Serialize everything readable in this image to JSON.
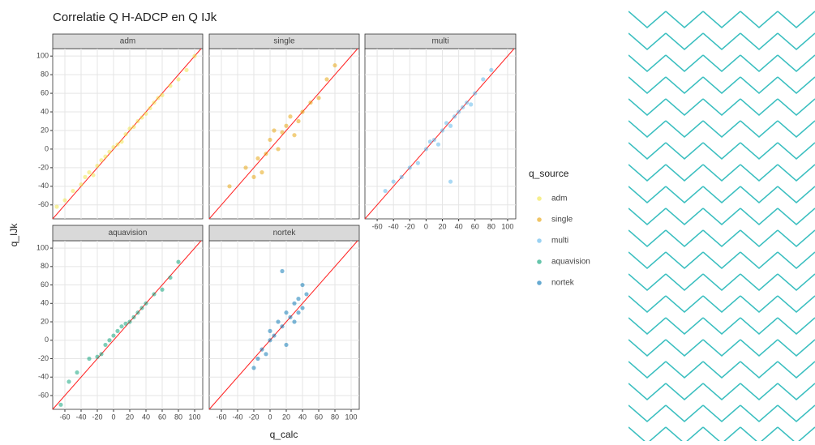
{
  "figure": {
    "title": "Correlatie Q H-ADCP en Q IJk",
    "xlabel": "q_calc",
    "ylabel": "q_IJk",
    "legend_title": "q_source"
  },
  "chart_data": [
    {
      "type": "scatter",
      "title": "adm",
      "color": "#f0e442",
      "x": [
        -70,
        -60,
        -50,
        -40,
        -35,
        -30,
        -25,
        -20,
        -15,
        -10,
        -5,
        0,
        5,
        10,
        15,
        20,
        25,
        30,
        35,
        40,
        45,
        50,
        55,
        60,
        70,
        80,
        90,
        100
      ],
      "y": [
        -62,
        -55,
        -45,
        -38,
        -30,
        -25,
        -28,
        -18,
        -12,
        -8,
        -3,
        2,
        5,
        8,
        16,
        22,
        24,
        30,
        34,
        38,
        44,
        50,
        55,
        58,
        68,
        75,
        85,
        100
      ],
      "xlim": [
        -75,
        110
      ],
      "ylim": [
        -75,
        108
      ],
      "xticks": [
        -60,
        -40,
        -20,
        0,
        20,
        40,
        60,
        80,
        100
      ],
      "yticks": [
        -60,
        -40,
        -20,
        0,
        20,
        40,
        60,
        80,
        100
      ],
      "grid": true
    },
    {
      "type": "scatter",
      "title": "single",
      "color": "#e69f00",
      "x": [
        -50,
        -30,
        -20,
        -15,
        -10,
        -5,
        0,
        5,
        10,
        15,
        20,
        25,
        30,
        35,
        40,
        50,
        60,
        70,
        80
      ],
      "y": [
        -40,
        -20,
        -30,
        -10,
        -25,
        -5,
        10,
        20,
        0,
        18,
        25,
        35,
        15,
        30,
        40,
        50,
        55,
        75,
        90
      ],
      "xlim": [
        -75,
        110
      ],
      "ylim": [
        -75,
        108
      ],
      "xticks": [
        -60,
        -40,
        -20,
        0,
        20,
        40,
        60,
        80,
        100
      ],
      "yticks": [
        -60,
        -40,
        -20,
        0,
        20,
        40,
        60,
        80,
        100
      ],
      "grid": true
    },
    {
      "type": "scatter",
      "title": "multi",
      "color": "#56b4e9",
      "x": [
        -50,
        -40,
        -30,
        -20,
        -10,
        0,
        5,
        10,
        15,
        20,
        25,
        30,
        35,
        40,
        45,
        50,
        55,
        60,
        70,
        80,
        30
      ],
      "y": [
        -45,
        -35,
        -30,
        -20,
        -15,
        0,
        8,
        10,
        5,
        20,
        28,
        25,
        35,
        40,
        45,
        50,
        48,
        60,
        75,
        85,
        -35
      ],
      "xlim": [
        -75,
        110
      ],
      "ylim": [
        -75,
        108
      ],
      "xticks": [
        -60,
        -40,
        -20,
        0,
        20,
        40,
        60,
        80,
        100
      ],
      "yticks": [
        -60,
        -40,
        -20,
        0,
        20,
        40,
        60,
        80,
        100
      ],
      "grid": true
    },
    {
      "type": "scatter",
      "title": "aquavision",
      "color": "#009e73",
      "x": [
        -65,
        -55,
        -45,
        -30,
        -20,
        -15,
        -10,
        -5,
        0,
        5,
        10,
        15,
        20,
        25,
        30,
        35,
        40,
        50,
        60,
        70,
        80
      ],
      "y": [
        -70,
        -45,
        -35,
        -20,
        -18,
        -15,
        -5,
        0,
        5,
        10,
        15,
        18,
        20,
        25,
        30,
        35,
        40,
        50,
        55,
        68,
        85
      ],
      "xlim": [
        -75,
        110
      ],
      "ylim": [
        -75,
        108
      ],
      "xticks": [
        -60,
        -40,
        -20,
        0,
        20,
        40,
        60,
        80,
        100
      ],
      "yticks": [
        -60,
        -40,
        -20,
        0,
        20,
        40,
        60,
        80,
        100
      ],
      "grid": true
    },
    {
      "type": "scatter",
      "title": "nortek",
      "color": "#0072b2",
      "x": [
        -20,
        -15,
        -10,
        -5,
        0,
        0,
        5,
        10,
        15,
        20,
        20,
        25,
        30,
        30,
        35,
        35,
        40,
        40,
        45,
        15
      ],
      "y": [
        -30,
        -20,
        -10,
        -15,
        0,
        10,
        5,
        20,
        15,
        30,
        -5,
        25,
        40,
        20,
        45,
        30,
        60,
        35,
        50,
        75
      ],
      "xlim": [
        -75,
        110
      ],
      "ylim": [
        -75,
        108
      ],
      "xticks": [
        -60,
        -40,
        -20,
        0,
        20,
        40,
        60,
        80,
        100
      ],
      "yticks": [
        -60,
        -40,
        -20,
        0,
        20,
        40,
        60,
        80,
        100
      ],
      "grid": true
    }
  ]
}
